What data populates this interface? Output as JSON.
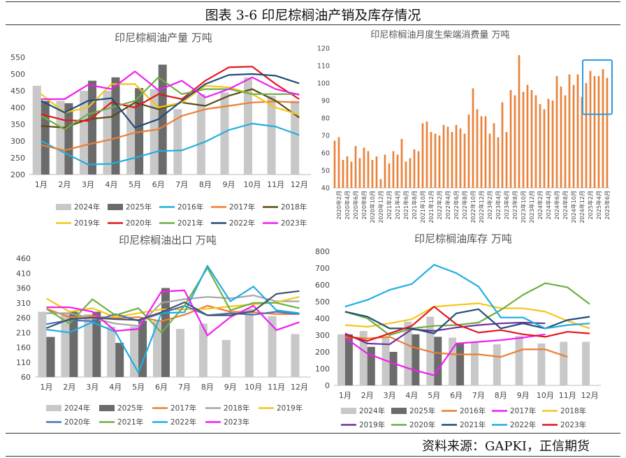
{
  "page": {
    "title": "图表 3-6  印尼棕榈油产销及库存情况",
    "source": "资料来源：GAPKI，正信期货"
  },
  "chart_data": [
    {
      "id": "production",
      "type": "bar+line",
      "title": "印尼棕榈油产量  万吨",
      "categories": [
        "1月",
        "2月",
        "3月",
        "4月",
        "5月",
        "6月",
        "7月",
        "8月",
        "9月",
        "10月",
        "11月",
        "12月"
      ],
      "ylim": [
        200,
        550
      ],
      "yticks": [
        200,
        250,
        300,
        350,
        400,
        450,
        500,
        550
      ],
      "bars": [
        {
          "name": "2024年",
          "color": "#c8c8c8",
          "values": [
            465,
            420,
            450,
            450,
            410,
            455,
            395,
            440,
            445,
            490,
            435,
            420
          ]
        },
        {
          "name": "2025年",
          "color": "#6b6b6b",
          "values": [
            420,
            413,
            480,
            490,
            458,
            528,
            null,
            null,
            null,
            null,
            null,
            null
          ]
        }
      ],
      "series": [
        {
          "name": "2016年",
          "color": "#1faee0",
          "values": [
            300,
            265,
            230,
            232,
            250,
            270,
            272,
            298,
            333,
            352,
            343,
            318
          ]
        },
        {
          "name": "2017年",
          "color": "#ed7d31",
          "values": [
            288,
            272,
            290,
            305,
            325,
            335,
            375,
            395,
            405,
            415,
            418,
            415
          ]
        },
        {
          "name": "2018年",
          "color": "#5a4a12",
          "values": [
            345,
            340,
            365,
            372,
            415,
            395,
            415,
            405,
            435,
            455,
            420,
            370
          ]
        },
        {
          "name": "2019年",
          "color": "#f5c518",
          "values": [
            440,
            385,
            400,
            470,
            470,
            400,
            415,
            465,
            460,
            440,
            400,
            378
          ]
        },
        {
          "name": "2020年",
          "color": "#e3161d",
          "values": [
            380,
            362,
            360,
            415,
            400,
            440,
            425,
            480,
            520,
            522,
            470,
            425
          ]
        },
        {
          "name": "2021年",
          "color": "#6fae41",
          "values": [
            375,
            335,
            380,
            400,
            420,
            490,
            440,
            455,
            455,
            440,
            440,
            440
          ]
        },
        {
          "name": "2022年",
          "color": "#1f4e79",
          "values": [
            420,
            385,
            420,
            428,
            340,
            365,
            420,
            470,
            497,
            500,
            495,
            472
          ]
        },
        {
          "name": "2023年",
          "color": "#f21cf2",
          "values": [
            425,
            425,
            468,
            455,
            508,
            452,
            480,
            430,
            455,
            490,
            455,
            438
          ]
        }
      ]
    },
    {
      "id": "biodiesel",
      "type": "bar",
      "title": "印尼棕榈油月度生柴端消费量      万吨",
      "ylim": [
        40,
        120
      ],
      "yticks": [
        40,
        50,
        60,
        70,
        80,
        90,
        100,
        110,
        120
      ],
      "color": "#e8823a",
      "categories": [
        "2020年1月",
        "2020年2月",
        "2020年3月",
        "2020年4月",
        "2020年5月",
        "2020年6月",
        "2020年7月",
        "2020年8月",
        "2020年9月",
        "2020年10月",
        "2020年11月",
        "2020年12月",
        "2021年1月",
        "2021年2月",
        "2021年3月",
        "2021年4月",
        "2021年5月",
        "2021年6月",
        "2021年7月",
        "2021年8月",
        "2021年9月",
        "2021年10月",
        "2021年11月",
        "2021年12月",
        "2022年1月",
        "2022年2月",
        "2022年3月",
        "2022年4月",
        "2022年5月",
        "2022年6月",
        "2022年7月",
        "2022年8月",
        "2022年9月",
        "2022年10月",
        "2022年11月",
        "2022年12月",
        "2023年1月",
        "2023年2月",
        "2023年3月",
        "2023年4月",
        "2023年5月",
        "2023年6月",
        "2023年7月",
        "2023年8月",
        "2023年9月",
        "2023年10月",
        "2023年11月",
        "2023年12月",
        "2024年1月",
        "2024年2月",
        "2024年3月",
        "2024年4月",
        "2024年5月",
        "2024年6月",
        "2024年7月",
        "2024年8月",
        "2024年9月",
        "2024年10月",
        "2024年11月",
        "2024年12月",
        "2025年1月",
        "2025年2月",
        "2025年3月",
        "2025年4月",
        "2025年5月",
        "2025年6月"
      ],
      "tick_labels": [
        "2020年2月",
        "2020年4月",
        "2020年6月",
        "2020年8月",
        "2020年10月",
        "2020年12月",
        "2021年2月",
        "2021年4月",
        "2021年6月",
        "2021年8月",
        "2021年10月",
        "2021年12月",
        "2022年2月",
        "2022年4月",
        "2022年6月",
        "2022年8月",
        "2022年10月",
        "2022年12月",
        "2023年2月",
        "2023年4月",
        "2023年6月",
        "2023年8月",
        "2023年10月",
        "2023年12月",
        "2024年2月",
        "2024年4月",
        "2024年6月",
        "2024年8月",
        "2024年10月",
        "2024年12月",
        "2025年2月",
        "2025年4月",
        "2025年6月"
      ],
      "values": [
        67,
        69,
        56,
        58,
        55,
        64,
        57,
        63,
        61,
        56,
        58,
        45,
        59,
        54,
        61,
        59,
        68,
        55,
        57,
        62,
        61,
        77,
        78,
        72,
        71,
        70,
        76,
        75,
        72,
        76,
        74,
        71,
        82,
        97,
        85,
        81,
        81,
        71,
        77,
        69,
        89,
        72,
        96,
        93,
        116,
        95,
        99,
        96,
        93,
        88,
        85,
        91,
        90,
        104,
        98,
        93,
        105,
        99,
        105,
        92,
        100,
        107,
        104,
        104,
        108,
        103
      ],
      "highlight": "2025年"
    },
    {
      "id": "exports",
      "type": "bar+line",
      "title": "印尼棕榈油出口   万吨",
      "categories": [
        "1月",
        "2月",
        "3月",
        "4月",
        "5月",
        "6月",
        "7月",
        "8月",
        "9月",
        "10月",
        "11月",
        "12月"
      ],
      "ylim": [
        60,
        460
      ],
      "yticks": [
        60,
        110,
        160,
        210,
        260,
        310,
        360,
        410,
        460
      ],
      "bars": [
        {
          "name": "2024年",
          "color": "#c8c8c8",
          "values": [
            280,
            278,
            272,
            230,
            230,
            250,
            222,
            240,
            185,
            290,
            265,
            205
          ]
        },
        {
          "name": "2025年",
          "color": "#6b6b6b",
          "values": [
            195,
            280,
            280,
            175,
            250,
            360,
            null,
            null,
            null,
            null,
            null,
            null
          ]
        }
      ],
      "series": [
        {
          "name": "2017年",
          "color": "#ed7d31",
          "values": [
            290,
            262,
            265,
            258,
            262,
            248,
            270,
            300,
            280,
            278,
            272,
            272
          ]
        },
        {
          "name": "2018年",
          "color": "#a6a6a6",
          "values": [
            275,
            275,
            258,
            240,
            232,
            310,
            322,
            330,
            325,
            335,
            315,
            315
          ]
        },
        {
          "name": "2019年",
          "color": "#f5c518",
          "values": [
            325,
            280,
            292,
            262,
            275,
            288,
            288,
            290,
            298,
            305,
            312,
            330
          ]
        },
        {
          "name": "2020年",
          "color": "#4472c4",
          "values": [
            238,
            252,
            248,
            272,
            250,
            275,
            300,
            268,
            275,
            270,
            280,
            272
          ]
        },
        {
          "name": "2021年",
          "color": "#6fae41",
          "values": [
            290,
            240,
            322,
            268,
            292,
            210,
            300,
            428,
            285,
            310,
            310,
            292
          ]
        },
        {
          "name": "2022年",
          "color": "#1faee0",
          "values": [
            220,
            210,
            245,
            212,
            75,
            275,
            278,
            435,
            315,
            365,
            285,
            275
          ]
        },
        {
          "name": "2023年",
          "color": "#f21cf2",
          "values": [
            295,
            295,
            280,
            215,
            222,
            348,
            352,
            200,
            262,
            300,
            218,
            245
          ]
        },
        {
          "name": "",
          "color": "#44546a",
          "values": [
            225,
            255,
            260,
            255,
            252,
            278,
            312,
            268,
            268,
            282,
            340,
            350
          ]
        }
      ]
    },
    {
      "id": "inventory",
      "type": "bar+line",
      "title": "印尼棕榈油库存 万吨",
      "categories": [
        "1月",
        "2月",
        "3月",
        "4月",
        "5月",
        "6月",
        "7月",
        "8月",
        "9月",
        "10月",
        "11月",
        "12月"
      ],
      "ylim": [
        0,
        800
      ],
      "yticks": [
        0,
        100,
        200,
        300,
        400,
        500,
        600,
        700,
        800
      ],
      "bars": [
        {
          "name": "2024年",
          "color": "#c8c8c8",
          "values": [
            305,
            325,
            290,
            380,
            410,
            285,
            255,
            245,
            295,
            250,
            260,
            260
          ]
        },
        {
          "name": "2025年",
          "color": "#6b6b6b",
          "values": [
            305,
            230,
            200,
            305,
            290,
            250,
            null,
            null,
            null,
            null,
            null,
            null
          ]
        }
      ],
      "series": [
        {
          "name": "2016年",
          "color": "#ed7d31",
          "values": [
            290,
            280,
            290,
            230,
            195,
            185,
            185,
            170,
            215,
            215,
            170,
            null
          ]
        },
        {
          "name": "2017年",
          "color": "#f21cf2",
          "values": [
            285,
            190,
            140,
            95,
            60,
            250,
            260,
            270,
            285,
            305,
            null,
            null
          ]
        },
        {
          "name": "2018年",
          "color": "#f5c518",
          "values": [
            360,
            350,
            370,
            395,
            470,
            480,
            490,
            460,
            460,
            440,
            385,
            340
          ]
        },
        {
          "name": "2019年",
          "color": "#7030a0",
          "values": [
            310,
            250,
            245,
            335,
            325,
            345,
            360,
            370,
            375,
            370,
            null,
            null
          ]
        },
        {
          "name": "2020年",
          "color": "#6fae41",
          "values": [
            440,
            400,
            300,
            340,
            355,
            360,
            375,
            450,
            540,
            610,
            585,
            485
          ]
        },
        {
          "name": "2021年",
          "color": "#1f4e79",
          "values": [
            440,
            410,
            340,
            340,
            310,
            430,
            455,
            340,
            370,
            340,
            390,
            410
          ]
        },
        {
          "name": "2022年",
          "color": "#1faee0",
          "values": [
            470,
            510,
            570,
            605,
            720,
            670,
            590,
            405,
            405,
            340,
            360,
            370
          ]
        },
        {
          "name": "2023年",
          "color": "#e3161d",
          "values": [
            300,
            265,
            310,
            355,
            470,
            365,
            315,
            330,
            305,
            290,
            320,
            310
          ]
        }
      ]
    }
  ]
}
